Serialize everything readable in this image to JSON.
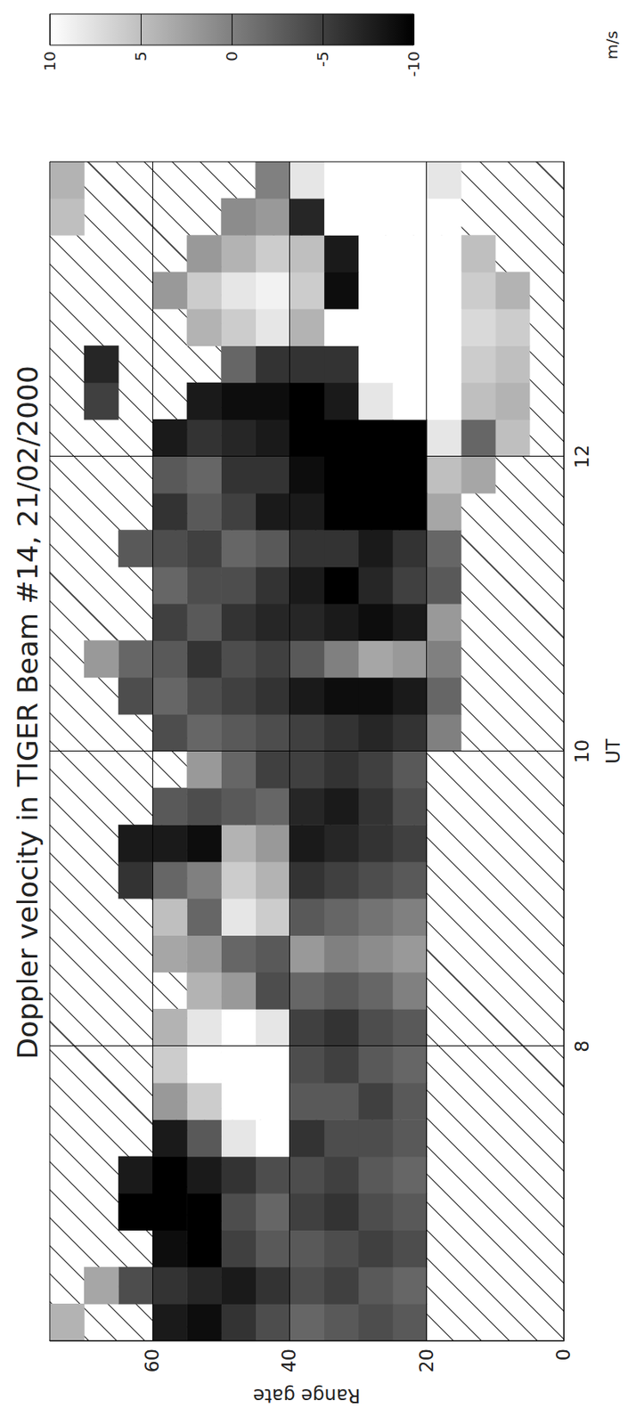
{
  "chart_data": {
    "type": "heatmap",
    "title": "Doppler velocity in TIGER Beam #14, 21/02/2000",
    "x_label": "UT",
    "y_label": "Range gate",
    "xlim": [
      6,
      14
    ],
    "xticks": [
      8,
      10,
      12
    ],
    "ylim": [
      0,
      75
    ],
    "yticks": [
      0,
      20,
      40,
      60
    ],
    "grid": true,
    "x_bins": [
      6,
      6.25,
      6.5,
      6.75,
      7,
      7.25,
      7.5,
      7.75,
      8,
      8.25,
      8.5,
      8.75,
      9,
      9.25,
      9.5,
      9.75,
      10,
      10.25,
      10.5,
      10.75,
      11,
      11.25,
      11.5,
      11.75,
      12,
      12.25,
      12.5,
      12.75,
      13,
      13.25,
      13.5,
      13.75,
      14
    ],
    "y_bins": [
      0,
      5,
      10,
      15,
      20,
      25,
      30,
      35,
      40,
      45,
      50,
      55,
      60,
      65,
      70,
      75
    ],
    "cells": [
      [
        null,
        null,
        null,
        null,
        null,
        null,
        null,
        null,
        null,
        null,
        null,
        null,
        null,
        null,
        null,
        null,
        null,
        null,
        null,
        null,
        null,
        null,
        null,
        null,
        null,
        null,
        null,
        null,
        null,
        null,
        null,
        null
      ],
      [
        null,
        null,
        null,
        null,
        null,
        null,
        null,
        null,
        null,
        null,
        null,
        null,
        null,
        null,
        null,
        null,
        null,
        null,
        null,
        null,
        null,
        null,
        null,
        null,
        5,
        4,
        5,
        6,
        4,
        null,
        null,
        null
      ],
      [
        null,
        null,
        null,
        null,
        null,
        null,
        null,
        null,
        null,
        null,
        null,
        null,
        null,
        null,
        null,
        null,
        null,
        null,
        null,
        null,
        null,
        null,
        null,
        3,
        -2,
        5,
        6,
        7,
        6,
        5,
        null,
        null
      ],
      [
        null,
        null,
        null,
        null,
        null,
        null,
        null,
        null,
        null,
        null,
        null,
        null,
        null,
        null,
        null,
        null,
        0,
        -2,
        0,
        2,
        -3,
        -2,
        3,
        5,
        8,
        10,
        10,
        10,
        10,
        10,
        10,
        8
      ],
      [
        -3,
        -2,
        -4,
        -3,
        -2,
        -3,
        -3,
        -2,
        -3,
        0,
        2,
        0,
        -3,
        -5,
        -4,
        -3,
        -6,
        -8,
        2,
        -8,
        -5,
        -6,
        -10,
        -10,
        -10,
        10,
        10,
        10,
        10,
        10,
        10,
        10
      ],
      [
        -4,
        -3,
        -5,
        -4,
        -3,
        -4,
        -5,
        -3,
        -4,
        -2,
        1,
        -1,
        -4,
        -6,
        -6,
        -5,
        -7,
        -9,
        3,
        -9,
        -7,
        -8,
        -10,
        -10,
        -10,
        8,
        10,
        10,
        10,
        10,
        10,
        10
      ],
      [
        -3,
        -5,
        -4,
        -6,
        -5,
        -4,
        -3,
        -5,
        -6,
        -3,
        0,
        -2,
        -5,
        -7,
        -8,
        -6,
        -6,
        -9,
        0,
        -8,
        -10,
        -6,
        -10,
        -10,
        -10,
        -8,
        -6,
        10,
        -9,
        -8,
        10,
        10
      ],
      [
        -2,
        -4,
        -3,
        -5,
        -4,
        -6,
        -3,
        -4,
        -5,
        -2,
        2,
        -3,
        -6,
        -8,
        -7,
        -5,
        -5,
        -8,
        -3,
        -7,
        -8,
        -6,
        -8,
        -9,
        -10,
        -10,
        -6,
        4,
        6,
        5,
        -7,
        8
      ],
      [
        -4,
        -6,
        -3,
        -2,
        -4,
        10,
        10,
        10,
        8,
        -4,
        -3,
        6,
        4,
        2,
        -2,
        -5,
        -4,
        -6,
        -5,
        -7,
        -6,
        -3,
        -8,
        -6,
        -8,
        -9,
        -6,
        8,
        9,
        6,
        2,
        0
      ],
      [
        -6,
        -8,
        -5,
        -4,
        -6,
        8,
        10,
        10,
        10,
        2,
        -2,
        8,
        6,
        4,
        -3,
        -2,
        -3,
        -5,
        -4,
        -6,
        -4,
        -2,
        -5,
        -6,
        -7,
        -9,
        -2,
        6,
        8,
        4,
        1,
        null
      ],
      [
        -9,
        -7,
        -10,
        -10,
        -8,
        -3,
        6,
        10,
        8,
        4,
        2,
        -2,
        0,
        -9,
        -4,
        2,
        -2,
        -4,
        -6,
        -3,
        -4,
        -5,
        -3,
        -2,
        -6,
        -8,
        null,
        4,
        6,
        2,
        null,
        null
      ],
      [
        -8,
        -6,
        -9,
        -10,
        -10,
        -8,
        2,
        6,
        4,
        null,
        3,
        5,
        -2,
        -8,
        -3,
        null,
        -4,
        -2,
        -3,
        -5,
        -2,
        -4,
        -6,
        -3,
        -8,
        null,
        null,
        null,
        2,
        null,
        null,
        null
      ],
      [
        null,
        -4,
        null,
        -10,
        -8,
        null,
        null,
        null,
        null,
        null,
        null,
        null,
        -6,
        -8,
        null,
        null,
        null,
        -4,
        -2,
        null,
        null,
        -3,
        null,
        null,
        null,
        null,
        null,
        null,
        null,
        null,
        null,
        null
      ],
      [
        null,
        3,
        null,
        null,
        null,
        null,
        null,
        null,
        null,
        null,
        null,
        null,
        null,
        null,
        null,
        null,
        null,
        null,
        2,
        null,
        null,
        null,
        null,
        null,
        null,
        -5,
        -7,
        null,
        null,
        null,
        null,
        null
      ],
      [
        4,
        null,
        null,
        null,
        null,
        null,
        null,
        null,
        null,
        null,
        null,
        null,
        null,
        null,
        null,
        null,
        null,
        null,
        null,
        null,
        null,
        null,
        null,
        null,
        null,
        null,
        null,
        null,
        null,
        null,
        5,
        4
      ]
    ],
    "colorbar": {
      "label": "m/s",
      "range": [
        -10,
        10
      ],
      "ticks": [
        10,
        5,
        0,
        -5,
        -10
      ],
      "colors": [
        "#000000",
        "#ffffff"
      ]
    }
  }
}
